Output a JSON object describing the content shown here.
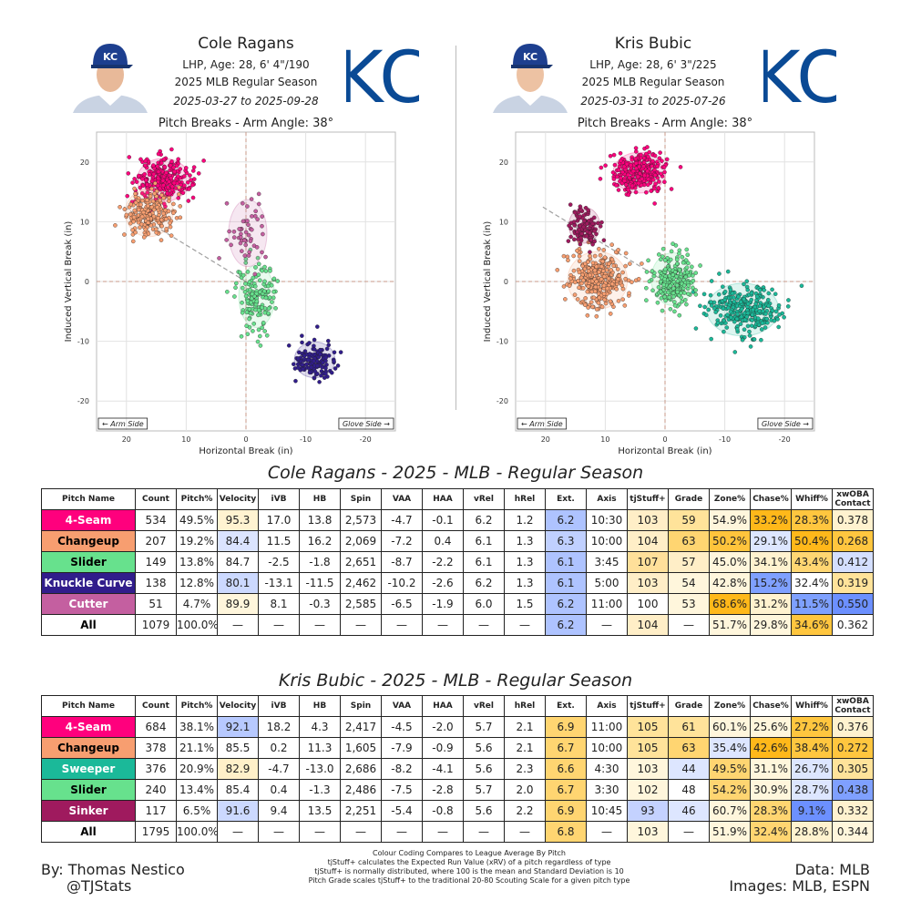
{
  "players": [
    {
      "name": "Cole Ragans",
      "info": "LHP, Age: 28, 6' 4\"/190",
      "season": "2025 MLB Regular Season",
      "dates": "2025-03-27 to 2025-09-28",
      "logo": "KC",
      "table_title": "Cole Ragans - 2025 - MLB - Regular Season"
    },
    {
      "name": "Kris Bubic",
      "info": "LHP, Age: 28, 6' 3\"/225",
      "season": "2025 MLB Regular Season",
      "dates": "2025-03-31 to 2025-07-26",
      "logo": "KC",
      "table_title": "Kris Bubic - 2025 - MLB - Regular Season"
    }
  ],
  "chart_data": [
    {
      "type": "scatter",
      "title": "Pitch Breaks - Arm Angle: 38°",
      "xlabel": "Horizontal Break (in)",
      "ylabel": "Induced Vertical Break (in)",
      "xlim": [
        25,
        -25
      ],
      "ylim": [
        -25,
        25
      ],
      "xticks": [
        20,
        10,
        0,
        -10,
        -20
      ],
      "yticks": [
        20,
        10,
        0,
        -10,
        -20
      ],
      "grid": true,
      "arm_angle_deg": 38,
      "annotations": [
        "← Arm Side",
        "Glove Side →"
      ],
      "series": [
        {
          "pitch": "4-Seam",
          "color": "#ff007d",
          "center": [
            13.8,
            17.0
          ],
          "spread": [
            2.2,
            1.8
          ],
          "count": 534
        },
        {
          "pitch": "Changeup",
          "color": "#f79e70",
          "center": [
            16.2,
            11.5
          ],
          "spread": [
            2.0,
            2.0
          ],
          "count": 207
        },
        {
          "pitch": "Slider",
          "color": "#67e18d",
          "center": [
            -1.8,
            -2.5
          ],
          "spread": [
            1.5,
            2.6
          ],
          "count": 149
        },
        {
          "pitch": "Knuckle Curve",
          "color": "#311d8b",
          "center": [
            -11.5,
            -13.1
          ],
          "spread": [
            1.7,
            1.5
          ],
          "count": 138
        },
        {
          "pitch": "Cutter",
          "color": "#c45fa0",
          "center": [
            -0.3,
            8.1
          ],
          "spread": [
            1.6,
            2.8
          ],
          "count": 51
        }
      ]
    },
    {
      "type": "scatter",
      "title": "Pitch Breaks - Arm Angle: 38°",
      "xlabel": "Horizontal Break (in)",
      "ylabel": "Induced Vertical Break (in)",
      "xlim": [
        25,
        -25
      ],
      "ylim": [
        -25,
        25
      ],
      "xticks": [
        20,
        10,
        0,
        -10,
        -20
      ],
      "yticks": [
        20,
        10,
        0,
        -10,
        -20
      ],
      "grid": true,
      "arm_angle_deg": 38,
      "annotations": [
        "← Arm Side",
        "Glove Side →"
      ],
      "series": [
        {
          "pitch": "4-Seam",
          "color": "#ff007d",
          "center": [
            4.3,
            18.2
          ],
          "spread": [
            2.2,
            1.7
          ],
          "count": 684
        },
        {
          "pitch": "Changeup",
          "color": "#f79e70",
          "center": [
            11.3,
            0.2
          ],
          "spread": [
            2.5,
            2.4
          ],
          "count": 378
        },
        {
          "pitch": "Sweeper",
          "color": "#1bb999",
          "center": [
            -13.0,
            -4.7
          ],
          "spread": [
            3.0,
            2.2
          ],
          "count": 376
        },
        {
          "pitch": "Slider",
          "color": "#67e18d",
          "center": [
            -1.3,
            0.4
          ],
          "spread": [
            1.8,
            2.2
          ],
          "count": 240
        },
        {
          "pitch": "Sinker",
          "color": "#9f1a5e",
          "center": [
            13.5,
            9.4
          ],
          "spread": [
            1.3,
            1.5
          ],
          "count": 117
        }
      ]
    }
  ],
  "table_headers": [
    "Pitch Name",
    "Count",
    "Pitch%",
    "Velocity",
    "iVB",
    "HB",
    "Spin",
    "VAA",
    "HAA",
    "vRel",
    "hRel",
    "Ext.",
    "Axis",
    "tjStuff+",
    "Grade",
    "Zone%",
    "Chase%",
    "Whiff%",
    "xwOBA Contact"
  ],
  "tables": [
    {
      "rows": [
        {
          "name": "4-Seam",
          "color": "#ff007d",
          "text_color": "#ffffff",
          "cells": [
            "534",
            "49.5%",
            "95.3",
            "17.0",
            "13.8",
            "2,573",
            "-4.7",
            "-0.1",
            "6.2",
            "1.2",
            "6.2",
            "10:30",
            "103",
            "59",
            "54.9%",
            "33.2%",
            "28.3%",
            "0.378"
          ],
          "bg": [
            "",
            "",
            "#fff3d1",
            "",
            "",
            "",
            "",
            "",
            "",
            "",
            "#aec3ff",
            "",
            "#ffeec7",
            "#ffe39a",
            "#fff6dc",
            "#ffb81a",
            "#ffc63f",
            "#fff2cf"
          ]
        },
        {
          "name": "Changeup",
          "color": "#f79e70",
          "text_color": "#000000",
          "cells": [
            "207",
            "19.2%",
            "84.4",
            "11.5",
            "16.2",
            "2,069",
            "-7.2",
            "0.4",
            "6.1",
            "1.3",
            "6.3",
            "10:00",
            "104",
            "63",
            "50.2%",
            "29.1%",
            "50.4%",
            "0.268"
          ],
          "bg": [
            "",
            "",
            "#dbe4ff",
            "",
            "",
            "",
            "",
            "",
            "",
            "",
            "#c0d0ff",
            "",
            "#ffeec7",
            "#ffd571",
            "#ffc43c",
            "#dde6ff",
            "#ffb81a",
            "#ffc63f"
          ]
        },
        {
          "name": "Slider",
          "color": "#67e18d",
          "text_color": "#000000",
          "cells": [
            "149",
            "13.8%",
            "84.7",
            "-2.5",
            "-1.8",
            "2,651",
            "-8.7",
            "-2.2",
            "6.1",
            "1.3",
            "6.1",
            "3:45",
            "107",
            "57",
            "45.0%",
            "34.1%",
            "43.4%",
            "0.412"
          ],
          "bg": [
            "",
            "",
            "#ffffff",
            "",
            "",
            "",
            "",
            "",
            "",
            "",
            "#aec3ff",
            "",
            "#ffe09a",
            "#ffeec7",
            "#fff6dc",
            "#fff2cf",
            "#ffd672",
            "#d4dfff"
          ]
        },
        {
          "name": "Knuckle Curve",
          "color": "#311d8b",
          "text_color": "#ffffff",
          "cells": [
            "138",
            "12.8%",
            "80.1",
            "-13.1",
            "-11.5",
            "2,462",
            "-10.2",
            "-2.6",
            "6.2",
            "1.3",
            "6.1",
            "5:00",
            "103",
            "54",
            "42.8%",
            "15.2%",
            "32.4%",
            "0.319"
          ],
          "bg": [
            "",
            "",
            "#ccd9ff",
            "",
            "",
            "",
            "",
            "",
            "",
            "",
            "#aec3ff",
            "",
            "#ffeec7",
            "#fff6dc",
            "#fff6dc",
            "#7fa0ff",
            "#ffffff",
            "#ffe39a"
          ]
        },
        {
          "name": "Cutter",
          "color": "#c45fa0",
          "text_color": "#ffffff",
          "cells": [
            "51",
            "4.7%",
            "89.9",
            "8.1",
            "-0.3",
            "2,585",
            "-6.5",
            "-1.9",
            "6.0",
            "1.5",
            "6.2",
            "11:00",
            "100",
            "53",
            "68.6%",
            "31.2%",
            "11.5%",
            "0.550"
          ],
          "bg": [
            "",
            "",
            "#fff6dc",
            "",
            "",
            "",
            "",
            "",
            "",
            "",
            "#aec3ff",
            "",
            "#ffffff",
            "#fff6dc",
            "#ffb81a",
            "#fff2cf",
            "#7ea0ff",
            "#6c90ff"
          ]
        },
        {
          "name": "All",
          "color": "#ffffff",
          "text_color": "#000000",
          "cells": [
            "1079",
            "100.0%",
            "—",
            "—",
            "—",
            "—",
            "—",
            "—",
            "—",
            "—",
            "6.2",
            "—",
            "104",
            "—",
            "51.7%",
            "29.8%",
            "34.6%",
            "0.362"
          ],
          "bg": [
            "",
            "",
            "",
            "",
            "",
            "",
            "",
            "",
            "",
            "",
            "#aec3ff",
            "",
            "#ffeec7",
            "",
            "#fff6dc",
            "#fff6dc",
            "#ffc63f",
            "#ffffff"
          ]
        }
      ]
    },
    {
      "rows": [
        {
          "name": "4-Seam",
          "color": "#ff007d",
          "text_color": "#ffffff",
          "cells": [
            "684",
            "38.1%",
            "92.1",
            "18.2",
            "4.3",
            "2,417",
            "-4.5",
            "-2.0",
            "5.7",
            "2.1",
            "6.9",
            "11:00",
            "105",
            "61",
            "60.1%",
            "25.6%",
            "27.2%",
            "0.376"
          ],
          "bg": [
            "",
            "",
            "#b7c9ff",
            "",
            "",
            "",
            "",
            "",
            "",
            "",
            "#ffd571",
            "",
            "#ffe39a",
            "#ffe39a",
            "#fff6dc",
            "#fff6dc",
            "#ffc63f",
            "#fff2cf"
          ]
        },
        {
          "name": "Changeup",
          "color": "#f79e70",
          "text_color": "#000000",
          "cells": [
            "378",
            "21.1%",
            "85.5",
            "0.2",
            "11.3",
            "1,605",
            "-7.9",
            "-0.9",
            "5.6",
            "2.1",
            "6.7",
            "10:00",
            "105",
            "63",
            "35.4%",
            "42.6%",
            "38.4%",
            "0.272"
          ],
          "bg": [
            "",
            "",
            "#ffffff",
            "",
            "",
            "",
            "",
            "",
            "",
            "",
            "#ffd571",
            "",
            "#ffe39a",
            "#ffd571",
            "#dde6ff",
            "#ffb81a",
            "#ffc63f",
            "#ffc63f"
          ]
        },
        {
          "name": "Sweeper",
          "color": "#1bb999",
          "text_color": "#ffffff",
          "cells": [
            "376",
            "20.9%",
            "82.9",
            "-4.7",
            "-13.0",
            "2,686",
            "-8.2",
            "-4.1",
            "5.6",
            "2.3",
            "6.6",
            "4:30",
            "103",
            "44",
            "49.5%",
            "31.1%",
            "26.7%",
            "0.305"
          ],
          "bg": [
            "",
            "",
            "#fff0c9",
            "",
            "",
            "",
            "",
            "",
            "",
            "",
            "#ffd571",
            "",
            "#fff6dc",
            "#dde6ff",
            "#ffd571",
            "#fff6dc",
            "#dde6ff",
            "#ffe39a"
          ]
        },
        {
          "name": "Slider",
          "color": "#67e18d",
          "text_color": "#000000",
          "cells": [
            "240",
            "13.4%",
            "85.4",
            "0.4",
            "-1.3",
            "2,486",
            "-7.5",
            "-2.8",
            "5.7",
            "2.0",
            "6.7",
            "3:30",
            "102",
            "48",
            "54.2%",
            "30.9%",
            "28.7%",
            "0.438"
          ],
          "bg": [
            "",
            "",
            "#ffffff",
            "",
            "",
            "",
            "",
            "",
            "",
            "",
            "#ffd571",
            "",
            "#fff6dc",
            "#ffffff",
            "#ffd571",
            "#fff6dc",
            "#dde6ff",
            "#7fa0ff"
          ]
        },
        {
          "name": "Sinker",
          "color": "#9f1a5e",
          "text_color": "#ffffff",
          "cells": [
            "117",
            "6.5%",
            "91.6",
            "9.4",
            "13.5",
            "2,251",
            "-5.4",
            "-0.8",
            "5.6",
            "2.2",
            "6.9",
            "10:45",
            "93",
            "46",
            "60.7%",
            "28.3%",
            "9.1%",
            "0.332"
          ],
          "bg": [
            "",
            "",
            "#ccd9ff",
            "",
            "",
            "",
            "",
            "",
            "",
            "",
            "#ffd571",
            "",
            "#c4d2ff",
            "#dde6ff",
            "#fff6dc",
            "#ffd571",
            "#6c90ff",
            "#fff2cf"
          ]
        },
        {
          "name": "All",
          "color": "#ffffff",
          "text_color": "#000000",
          "cells": [
            "1795",
            "100.0%",
            "—",
            "—",
            "—",
            "—",
            "—",
            "—",
            "—",
            "—",
            "6.8",
            "—",
            "103",
            "—",
            "51.9%",
            "32.4%",
            "28.8%",
            "0.344"
          ],
          "bg": [
            "",
            "",
            "",
            "",
            "",
            "",
            "",
            "",
            "",
            "",
            "#ffd571",
            "",
            "#fff6dc",
            "",
            "#fff6dc",
            "#ffd571",
            "#fff2cf",
            "#fff6dc"
          ]
        }
      ]
    }
  ],
  "footer": {
    "by": "By: Thomas Nestico",
    "handle": "@TJStats",
    "data": "Data: MLB",
    "images": "Images: MLB, ESPN",
    "notes": [
      "Colour Coding Compares to League Average By Pitch",
      "tjStuff+ calculates the Expected Run Value (xRV) of a pitch regardless of type",
      "tjStuff+ is normally distributed, where 100 is the mean and Standard Deviation is 10",
      "Pitch Grade scales tjStuff+ to the traditional 20-80 Scouting Scale for a given pitch type"
    ]
  }
}
